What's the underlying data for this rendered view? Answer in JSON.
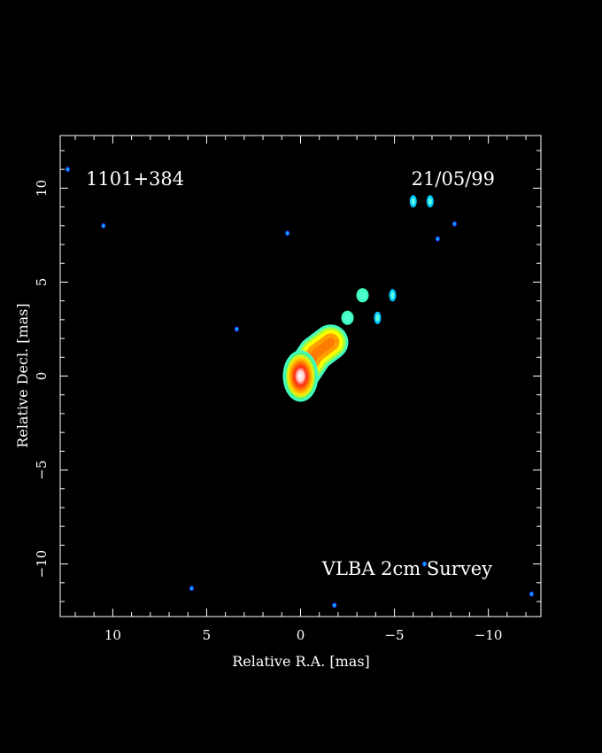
{
  "chart_data": {
    "type": "heatmap",
    "title": "",
    "source_name": "1101+384",
    "date": "21/05/99",
    "survey_label": "VLBA 2cm Survey",
    "xlabel": "Relative R.A. [mas]",
    "ylabel": "Relative Decl. [mas]",
    "xlim": [
      12.8,
      -12.8
    ],
    "ylim": [
      -12.8,
      12.8
    ],
    "x_ticks": [
      10,
      5,
      0,
      -5,
      -10
    ],
    "y_ticks": [
      10,
      5,
      0,
      -5,
      -10
    ],
    "x_tick_labels": [
      "10",
      "5",
      "0",
      "−5",
      "−10"
    ],
    "y_tick_labels": [
      "10",
      "5",
      "0",
      "−5",
      "−10"
    ],
    "grid": false,
    "colormap": [
      "#2040ff",
      "#00c8ff",
      "#40ffc0",
      "#a0ff40",
      "#ffff00",
      "#ffa000",
      "#ff3000",
      "#ffffff"
    ],
    "core": {
      "ra": 0.0,
      "dec": 0.0
    },
    "jet_path": [
      [
        0.0,
        0.0
      ],
      [
        -0.8,
        1.2
      ],
      [
        -1.6,
        1.8
      ]
    ],
    "components": [
      {
        "ra": -3.3,
        "dec": 4.3,
        "level": 2
      },
      {
        "ra": -2.5,
        "dec": 3.1,
        "level": 2
      },
      {
        "ra": -4.1,
        "dec": 3.1,
        "level": 1
      },
      {
        "ra": -4.9,
        "dec": 4.3,
        "level": 1
      },
      {
        "ra": -6.0,
        "dec": 9.3,
        "level": 1
      },
      {
        "ra": -6.9,
        "dec": 9.3,
        "level": 1
      },
      {
        "ra": -7.3,
        "dec": 7.3,
        "level": 0
      },
      {
        "ra": -8.2,
        "dec": 8.1,
        "level": 0
      },
      {
        "ra": 10.5,
        "dec": 8.0,
        "level": 0
      },
      {
        "ra": 0.7,
        "dec": 7.6,
        "level": 0
      },
      {
        "ra": 3.4,
        "dec": 2.5,
        "level": 0
      },
      {
        "ra": 5.8,
        "dec": -11.3,
        "level": 0
      },
      {
        "ra": -1.8,
        "dec": -12.2,
        "level": 0
      },
      {
        "ra": -6.6,
        "dec": -10.0,
        "level": 0
      },
      {
        "ra": -12.3,
        "dec": -11.6,
        "level": 0
      },
      {
        "ra": 12.4,
        "dec": 11.0,
        "level": 0
      }
    ]
  }
}
